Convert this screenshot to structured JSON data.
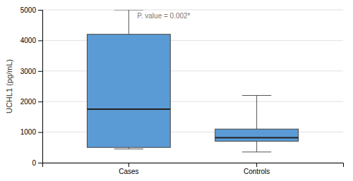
{
  "chart_data": {
    "type": "box",
    "categories": [
      "Cases",
      "Controls"
    ],
    "boxes": [
      {
        "q1": 500,
        "median": 1750,
        "q3": 4200,
        "whisker_low": 450,
        "whisker_high": 5000
      },
      {
        "q1": 700,
        "median": 820,
        "q3": 1100,
        "whisker_low": 350,
        "whisker_high": 2200
      }
    ],
    "ylabel": "UCHL1 (pg/mL)",
    "annotation": "P. value = 0.002*",
    "ylim": [
      0,
      5000
    ],
    "yticks": [
      0,
      1000,
      2000,
      3000,
      4000,
      5000
    ],
    "color": "#5B9BD5",
    "grid": true
  }
}
